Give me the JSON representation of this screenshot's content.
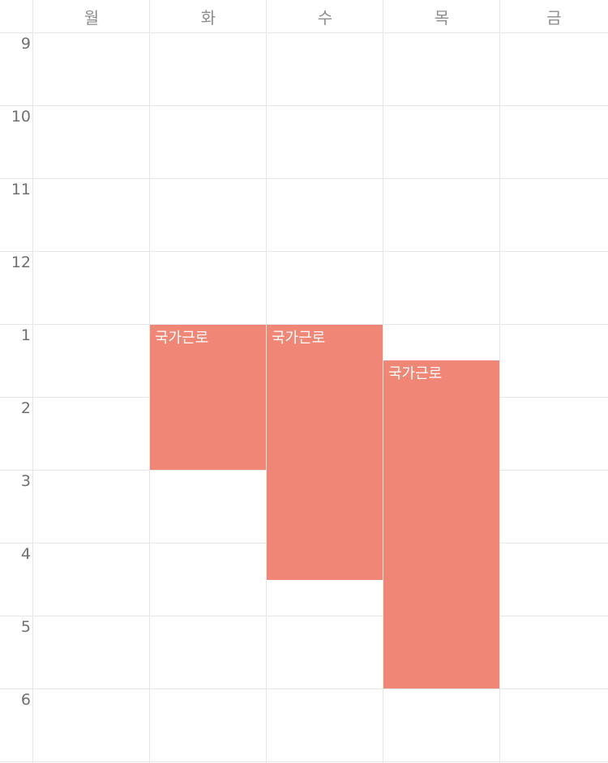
{
  "timetable": {
    "days": [
      "월",
      "화",
      "수",
      "목",
      "금"
    ],
    "hours": [
      "9",
      "10",
      "11",
      "12",
      "1",
      "2",
      "3",
      "4",
      "5",
      "6"
    ],
    "event_color": "#f08776",
    "events": [
      {
        "title": "국가근로",
        "day": "화",
        "start": "1:00",
        "end": "3:00"
      },
      {
        "title": "국가근로",
        "day": "수",
        "start": "1:00",
        "end": "4:30"
      },
      {
        "title": "국가근로",
        "day": "목",
        "start": "1:30",
        "end": "6:00"
      }
    ]
  }
}
